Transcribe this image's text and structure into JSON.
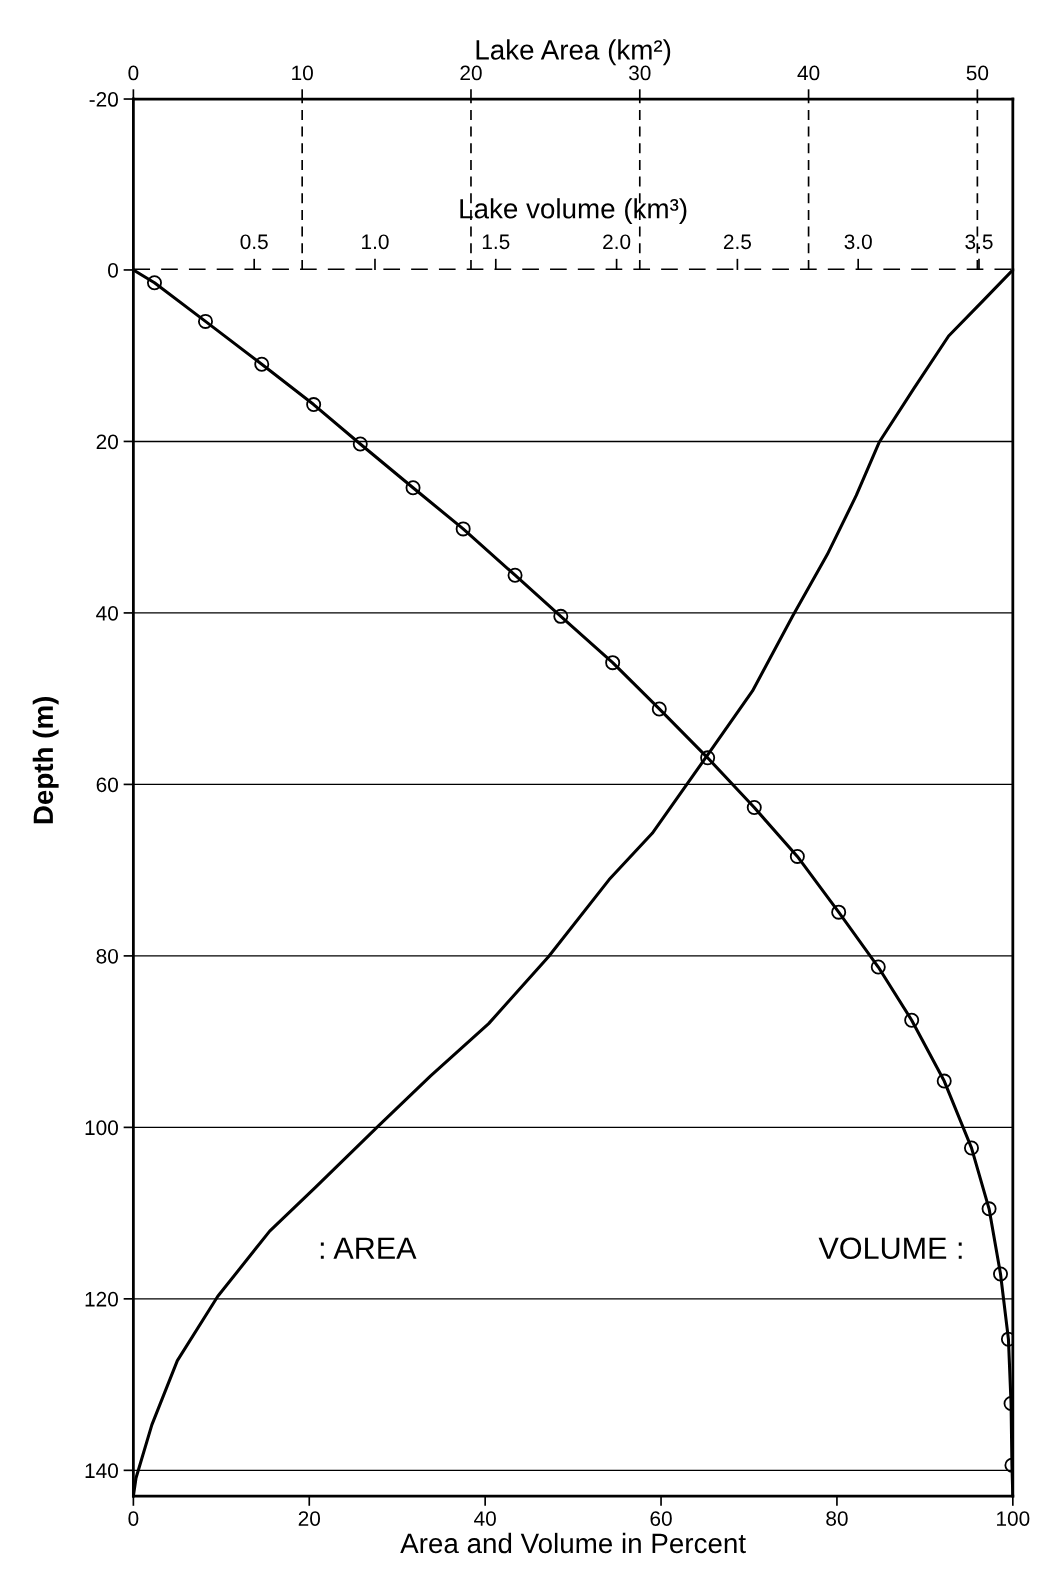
{
  "chart_data": [
    {
      "type": "line",
      "xlabel": "Lake volume (km³)",
      "x2label": "Lake Area (km²)",
      "xlim": [
        0,
        3.64
      ],
      "xticks": [
        0.5,
        {
          "value": 1,
          "label": "1.0"
        },
        1.5,
        {
          "value": 2,
          "label": "2.0"
        },
        2.5,
        {
          "value": 3,
          "label": "3.0"
        },
        3.5
      ],
      "x2lim": [
        0,
        52.1
      ],
      "x2ticks": [
        0,
        10,
        20,
        30,
        40,
        50
      ],
      "ylim": [
        0,
        -20
      ],
      "yticks": [
        -20,
        0
      ],
      "ref_lines": [
        {
          "axis": "x2",
          "value": 10,
          "line_style": "dashed",
          "color": "#000000"
        },
        {
          "axis": "x2",
          "value": 20,
          "line_style": "dashed",
          "color": "#000000"
        },
        {
          "axis": "x2",
          "value": 30,
          "line_style": "dashed",
          "color": "#000000"
        },
        {
          "axis": "x2",
          "value": 40,
          "line_style": "dashed",
          "color": "#000000"
        },
        {
          "axis": "x2",
          "value": 50,
          "line_style": "dashed",
          "color": "#000000"
        },
        {
          "axis": "y",
          "value": 0,
          "line_style": "dashed",
          "color": "#000000"
        }
      ]
    },
    {
      "type": "line",
      "xlabel": "Area and Volume in Percent",
      "ylabel": "Depth (m)",
      "xlim": [
        0,
        100
      ],
      "xticks": [
        0,
        20,
        40,
        60,
        80,
        100
      ],
      "ylim": [
        143,
        0
      ],
      "yticks": [
        20,
        40,
        60,
        80,
        100,
        120,
        140
      ],
      "grid": "y",
      "series": [
        {
          "name": ": AREA",
          "type": "line",
          "marker": "none",
          "color": "#000000",
          "x": [
            100,
            96.6,
            92.7,
            88.7,
            84.8,
            82.2,
            78.9,
            75.0,
            70.4,
            65.2,
            59.0,
            54.1,
            47.2,
            40.4,
            33.8,
            27.9,
            20.7,
            15.5,
            9.6,
            5.0,
            2.1,
            0.3,
            0
          ],
          "values": [
            0,
            3.6,
            7.7,
            13.9,
            20.1,
            26.3,
            33.2,
            40.3,
            49.1,
            56.7,
            65.7,
            71.1,
            80.1,
            87.9,
            94.0,
            99.8,
            107.0,
            112.1,
            119.7,
            127.2,
            134.7,
            140.9,
            143
          ]
        },
        {
          "name": "VOLUME :",
          "type": "line",
          "marker": "none",
          "color": "#000000",
          "x": [
            0,
            2.4,
            8.2,
            14.6,
            20.5,
            25.8,
            31.8,
            37.5,
            43.4,
            48.6,
            54.5,
            59.8,
            65.3,
            70.6,
            75.5,
            80.2,
            84.7,
            88.5,
            92.2,
            95.3,
            97.3,
            98.6,
            99.5,
            99.8,
            99.9,
            100
          ],
          "values": [
            0,
            1.5,
            6.0,
            11.0,
            15.7,
            20.3,
            25.4,
            30.2,
            35.6,
            40.4,
            45.8,
            51.2,
            56.9,
            62.7,
            68.4,
            74.9,
            81.3,
            87.5,
            94.6,
            102.4,
            109.5,
            117.1,
            124.7,
            132.2,
            139.4,
            143
          ]
        },
        {
          "type": "scatter",
          "color": "#000000",
          "marker": "circle",
          "x": [
            2.4,
            8.2,
            14.6,
            20.5,
            25.8,
            31.8,
            37.5,
            43.4,
            48.6,
            54.5,
            59.8,
            65.3,
            70.6,
            75.5,
            80.2,
            84.7,
            88.5,
            92.2,
            95.3,
            97.3,
            98.6,
            99.5,
            99.8,
            99.9
          ],
          "values": [
            1.5,
            6.0,
            11.0,
            15.7,
            20.3,
            25.4,
            30.2,
            35.6,
            40.4,
            45.8,
            51.2,
            56.9,
            62.7,
            68.4,
            74.9,
            81.3,
            87.5,
            94.6,
            102.4,
            109.5,
            117.1,
            124.7,
            132.2,
            139.4
          ]
        }
      ]
    }
  ]
}
